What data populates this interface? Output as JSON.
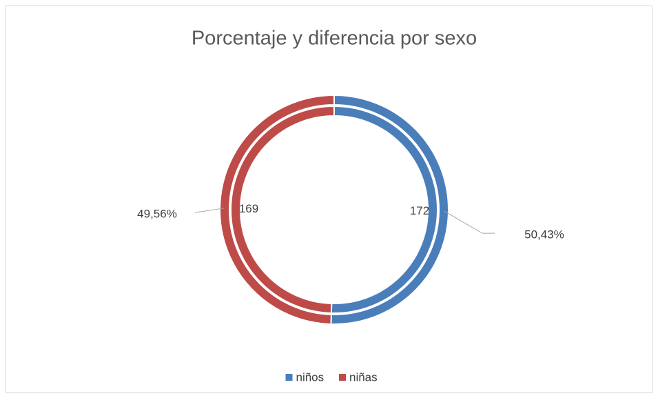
{
  "chart_data": {
    "type": "doughnut",
    "title": "Porcentaje y diferencia por sexo",
    "categories": [
      "niños",
      "niñas"
    ],
    "colors": [
      "#4a7ebb",
      "#be4b48"
    ],
    "series": [
      {
        "values": [
          50.43,
          49.56
        ],
        "value_labels": [
          "50,43%",
          "49,56%"
        ]
      },
      {
        "values": [
          172,
          169
        ]
      }
    ],
    "legend": "bottom"
  }
}
